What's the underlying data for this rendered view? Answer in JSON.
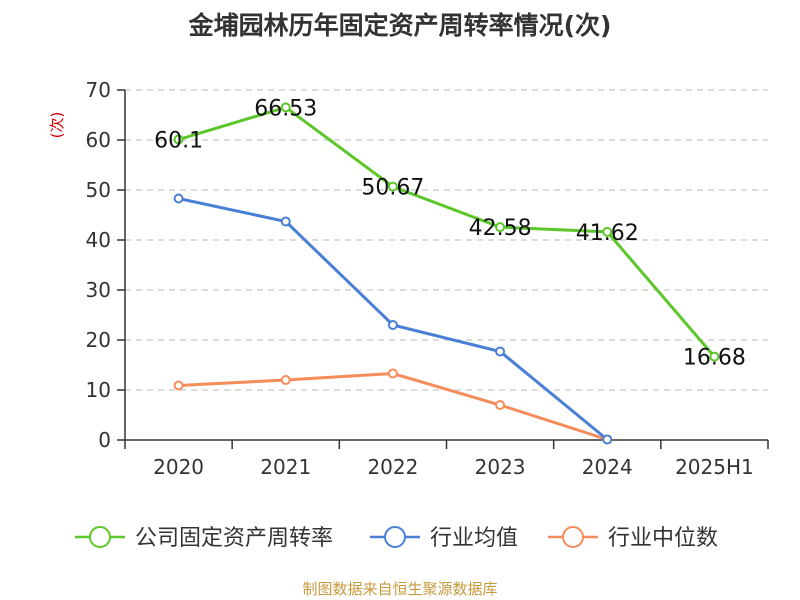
{
  "chart_data": {
    "type": "line",
    "title": "金埔园林历年固定资产周转率情况(次)",
    "ylabel": "(次)",
    "xlabel": "",
    "categories": [
      "2020",
      "2021",
      "2022",
      "2023",
      "2024",
      "2025H1"
    ],
    "ylim": [
      0,
      70
    ],
    "yticks": [
      0,
      10,
      20,
      30,
      40,
      50,
      60,
      70
    ],
    "grid": true,
    "legend_position": "bottom",
    "series": [
      {
        "name": "公司固定资产周转率",
        "color": "#5cc72a",
        "values": [
          60.1,
          66.53,
          50.67,
          42.58,
          41.62,
          16.68
        ],
        "labels": [
          "60.1",
          "66.53",
          "50.67",
          "42.58",
          "41.62",
          "16.68"
        ]
      },
      {
        "name": "行业均值",
        "color": "#4a7fd6",
        "values": [
          48.3,
          43.7,
          23.0,
          17.7,
          0.1,
          null
        ]
      },
      {
        "name": "行业中位数",
        "color": "#f58c5a",
        "values": [
          10.9,
          12.0,
          13.3,
          7.0,
          0.1,
          null
        ]
      }
    ]
  },
  "source": "制图数据来自恒生聚源数据库"
}
